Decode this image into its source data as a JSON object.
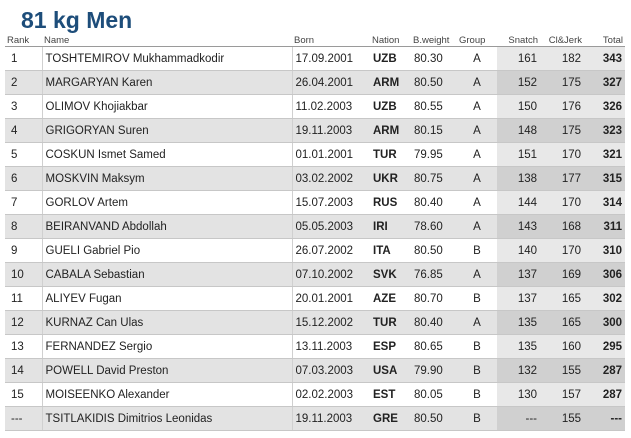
{
  "title": "81 kg Men",
  "headers": {
    "rank": "Rank",
    "name": "Name",
    "born": "Born",
    "nation": "Nation",
    "bweight": "B.weight",
    "group": "Group",
    "snatch": "Snatch",
    "cj": "Cl&Jerk",
    "total": "Total"
  },
  "rows": [
    {
      "rank": "1",
      "name": "TOSHTEMIROV Mukhammadkodir",
      "born": "17.09.2001",
      "nation": "UZB",
      "bweight": "80.30",
      "group": "A",
      "snatch": "161",
      "cj": "182",
      "total": "343"
    },
    {
      "rank": "2",
      "name": "MARGARYAN Karen",
      "born": "26.04.2001",
      "nation": "ARM",
      "bweight": "80.50",
      "group": "A",
      "snatch": "152",
      "cj": "175",
      "total": "327"
    },
    {
      "rank": "3",
      "name": "OLIMOV Khojiakbar",
      "born": "11.02.2003",
      "nation": "UZB",
      "bweight": "80.55",
      "group": "A",
      "snatch": "150",
      "cj": "176",
      "total": "326"
    },
    {
      "rank": "4",
      "name": "GRIGORYAN Suren",
      "born": "19.11.2003",
      "nation": "ARM",
      "bweight": "80.15",
      "group": "A",
      "snatch": "148",
      "cj": "175",
      "total": "323"
    },
    {
      "rank": "5",
      "name": "COSKUN Ismet Samed",
      "born": "01.01.2001",
      "nation": "TUR",
      "bweight": "79.95",
      "group": "A",
      "snatch": "151",
      "cj": "170",
      "total": "321"
    },
    {
      "rank": "6",
      "name": "MOSKVIN Maksym",
      "born": "03.02.2002",
      "nation": "UKR",
      "bweight": "80.75",
      "group": "A",
      "snatch": "138",
      "cj": "177",
      "total": "315"
    },
    {
      "rank": "7",
      "name": "GORLOV Artem",
      "born": "15.07.2003",
      "nation": "RUS",
      "bweight": "80.40",
      "group": "A",
      "snatch": "144",
      "cj": "170",
      "total": "314"
    },
    {
      "rank": "8",
      "name": "BEIRANVAND Abdollah",
      "born": "05.05.2003",
      "nation": "IRI",
      "bweight": "78.60",
      "group": "A",
      "snatch": "143",
      "cj": "168",
      "total": "311"
    },
    {
      "rank": "9",
      "name": "GUELI Gabriel Pio",
      "born": "26.07.2002",
      "nation": "ITA",
      "bweight": "80.50",
      "group": "B",
      "snatch": "140",
      "cj": "170",
      "total": "310"
    },
    {
      "rank": "10",
      "name": "CABALA Sebastian",
      "born": "07.10.2002",
      "nation": "SVK",
      "bweight": "76.85",
      "group": "A",
      "snatch": "137",
      "cj": "169",
      "total": "306"
    },
    {
      "rank": "11",
      "name": "ALIYEV Fugan",
      "born": "20.01.2001",
      "nation": "AZE",
      "bweight": "80.70",
      "group": "B",
      "snatch": "137",
      "cj": "165",
      "total": "302"
    },
    {
      "rank": "12",
      "name": "KURNAZ Can Ulas",
      "born": "15.12.2002",
      "nation": "TUR",
      "bweight": "80.40",
      "group": "A",
      "snatch": "135",
      "cj": "165",
      "total": "300"
    },
    {
      "rank": "13",
      "name": "FERNANDEZ Sergio",
      "born": "13.11.2003",
      "nation": "ESP",
      "bweight": "80.65",
      "group": "B",
      "snatch": "135",
      "cj": "160",
      "total": "295"
    },
    {
      "rank": "14",
      "name": "POWELL David Preston",
      "born": "07.03.2003",
      "nation": "USA",
      "bweight": "79.90",
      "group": "B",
      "snatch": "132",
      "cj": "155",
      "total": "287"
    },
    {
      "rank": "15",
      "name": "MOISEENKO Alexander",
      "born": "02.02.2003",
      "nation": "EST",
      "bweight": "80.05",
      "group": "B",
      "snatch": "130",
      "cj": "157",
      "total": "287"
    },
    {
      "rank": "---",
      "name": "TSITLAKIDIS Dimitrios Leonidas",
      "born": "19.11.2003",
      "nation": "GRE",
      "bweight": "80.50",
      "group": "B",
      "snatch": "---",
      "cj": "155",
      "total": "---"
    }
  ]
}
